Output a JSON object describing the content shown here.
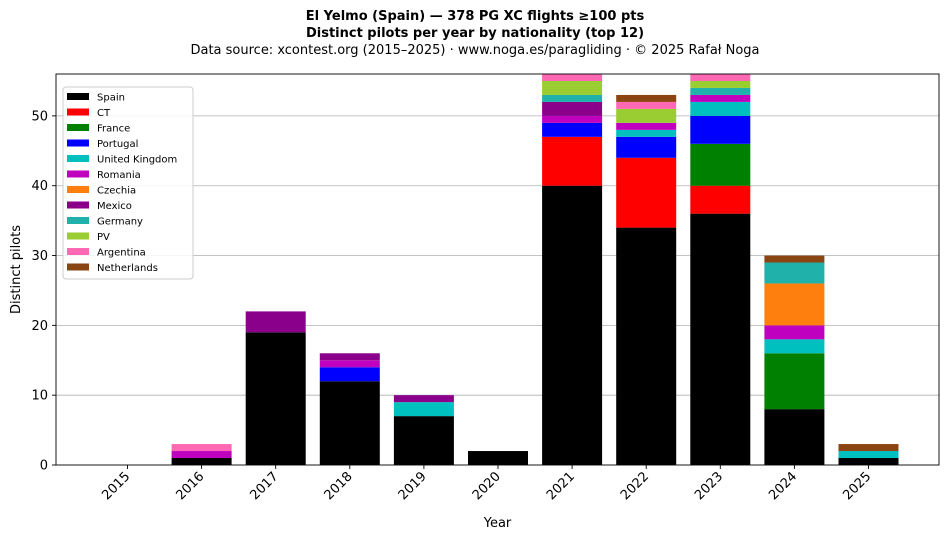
{
  "title_lines": [
    "El Yelmo (Spain)  —  378 PG XC flights ≥100 pts",
    "Distinct pilots per year by nationality (top 12)",
    "Data source: xcontest.org (2015–2025)  ·  www.noga.es/paragliding  ·  © 2025 Rafał Noga"
  ],
  "chart_data": {
    "type": "bar",
    "stacked": true,
    "xlabel": "Year",
    "ylabel": "Distinct pilots",
    "ylim": [
      0,
      56
    ],
    "yticks": [
      0,
      10,
      20,
      30,
      40,
      50
    ],
    "grid": "horizontal",
    "legend_position": "top-left",
    "categories": [
      "2015",
      "2016",
      "2017",
      "2018",
      "2019",
      "2020",
      "2021",
      "2022",
      "2023",
      "2024",
      "2025"
    ],
    "series": [
      {
        "name": "Spain",
        "color": "#000000",
        "values": [
          0,
          1,
          19,
          12,
          7,
          2,
          40,
          34,
          36,
          8,
          1
        ]
      },
      {
        "name": "CT",
        "color": "#ff0000",
        "values": [
          0,
          0,
          0,
          0,
          0,
          0,
          7,
          10,
          4,
          0,
          0
        ]
      },
      {
        "name": "France",
        "color": "#008000",
        "values": [
          0,
          0,
          0,
          0,
          0,
          0,
          0,
          0,
          6,
          8,
          0
        ]
      },
      {
        "name": "Portugal",
        "color": "#0000ff",
        "values": [
          0,
          0,
          0,
          2,
          0,
          0,
          2,
          3,
          4,
          0,
          0
        ]
      },
      {
        "name": "United Kingdom",
        "color": "#00bfbf",
        "values": [
          0,
          0,
          0,
          0,
          2,
          0,
          0,
          1,
          2,
          2,
          1
        ]
      },
      {
        "name": "Romania",
        "color": "#bf00bf",
        "values": [
          0,
          1,
          0,
          1,
          0,
          0,
          1,
          1,
          1,
          2,
          0
        ]
      },
      {
        "name": "Czechia",
        "color": "#ff7f0e",
        "values": [
          0,
          0,
          0,
          0,
          0,
          0,
          0,
          0,
          0,
          6,
          0
        ]
      },
      {
        "name": "Mexico",
        "color": "#8b008b",
        "values": [
          0,
          0,
          3,
          1,
          1,
          0,
          2,
          0,
          0,
          0,
          0
        ]
      },
      {
        "name": "Germany",
        "color": "#20b2aa",
        "values": [
          0,
          0,
          0,
          0,
          0,
          0,
          1,
          0,
          1,
          3,
          0
        ]
      },
      {
        "name": "PV",
        "color": "#9acd32",
        "values": [
          0,
          0,
          0,
          0,
          0,
          0,
          2,
          2,
          1,
          0,
          0
        ]
      },
      {
        "name": "Argentina",
        "color": "#ff69b4",
        "values": [
          0,
          1,
          0,
          0,
          0,
          0,
          1,
          1,
          1,
          0,
          0
        ]
      },
      {
        "name": "Netherlands",
        "color": "#8b4513",
        "values": [
          0,
          0,
          0,
          0,
          0,
          0,
          0,
          1,
          0,
          1,
          1
        ]
      }
    ]
  }
}
